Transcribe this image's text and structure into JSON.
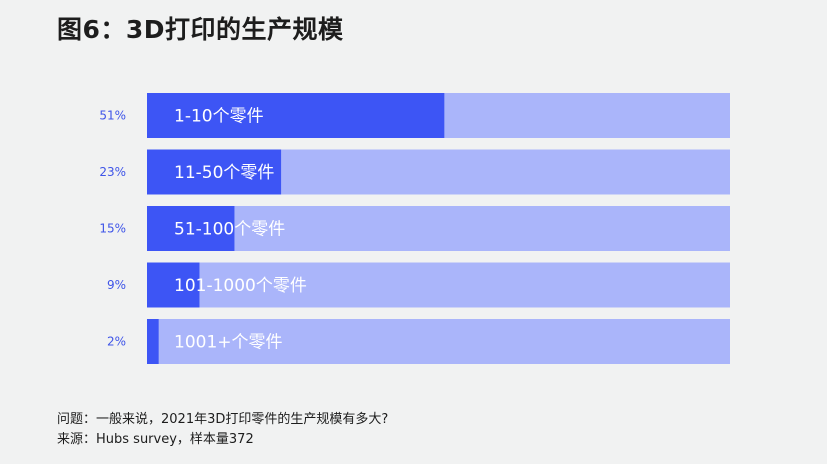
{
  "page": {
    "title": "图6：3D打印的生产规模"
  },
  "chart_data": {
    "type": "bar",
    "orientation": "horizontal",
    "title": "图6：3D打印的生产规模",
    "categories": [
      "1-10个零件",
      "11-50个零件",
      "51-100个零件",
      "101-1000个零件",
      "1001+个零件"
    ],
    "values": [
      51,
      23,
      15,
      9,
      2
    ],
    "value_labels": [
      "51%",
      "23%",
      "15%",
      "9%",
      "2%"
    ],
    "xlim": [
      0,
      100
    ],
    "grid": false,
    "colors": {
      "bar": "#3d55f5",
      "track": "#aab5fa",
      "value_text": "#3f55e8"
    }
  },
  "footer": {
    "question": "问题：一般来说，2021年3D打印零件的生产规模有多大?",
    "source": "来源：Hubs survey，样本量372"
  }
}
